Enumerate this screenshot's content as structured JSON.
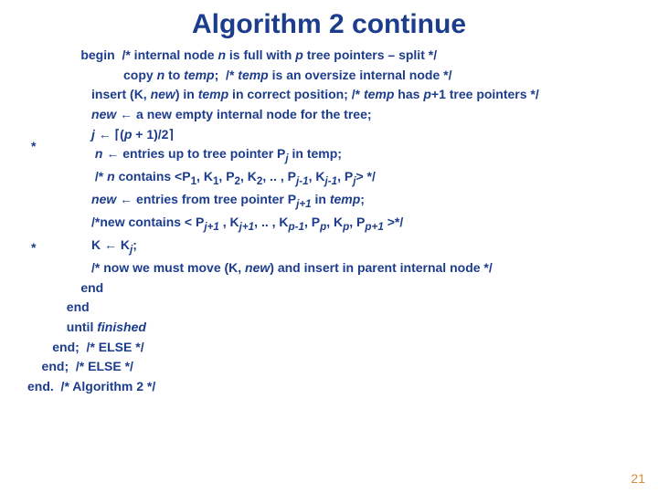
{
  "title": "Algorithm 2 continue",
  "slide_number": "21",
  "colors": {
    "text": "#1c3c8c",
    "slidenum": "#d88a3a",
    "background": "#ffffff"
  },
  "fonts": {
    "title_size": 30,
    "body_size": 14,
    "family": "Arial"
  },
  "stars": {
    "s1": "*",
    "s2": "*"
  },
  "lines": {
    "l1_a": "               begin  /* internal node ",
    "l1_b": "n",
    "l1_c": " is full with ",
    "l1_d": "p",
    "l1_e": " tree pointers – split */",
    "l2_a": "                           copy ",
    "l2_b": "n",
    "l2_c": " to ",
    "l2_d": "temp",
    "l2_e": ";  /* ",
    "l2_f": "temp",
    "l2_g": " is an oversize internal node */",
    "l3_a": "                  insert (K, ",
    "l3_b": "new",
    "l3_c": ") in ",
    "l3_d": "temp",
    "l3_e": " in correct position; /* ",
    "l3_f": "temp",
    "l3_g": " has ",
    "l3_h": "p",
    "l3_i": "+1 tree pointers */",
    "l4_a": "                  ",
    "l4_b": "new",
    "l4_c": " ← a new empty internal node for the tree;",
    "l5_a": "                  ",
    "l5_b": "j",
    "l5_c": " ← ⌈(",
    "l5_d": "p",
    "l5_e": " + 1)/2⌉",
    "l6_a": "                   ",
    "l6_b": "n",
    "l6_c": " ← entries up to tree pointer P",
    "l6_d": "j",
    "l6_e": " in temp;",
    "l7_a": "                   /* ",
    "l7_b": "n",
    "l7_c": " contains <P",
    "l7_d": "1",
    "l7_e": ", K",
    "l7_f": "1",
    "l7_g": ", P",
    "l7_h": "2",
    "l7_i": ", K",
    "l7_j": "2",
    "l7_k": ", .. , P",
    "l7_l": "j-1",
    "l7_m": ", K",
    "l7_n": "j-1",
    "l7_o": ", P",
    "l7_p": "j",
    "l7_q": "> */",
    "l8_a": "                  ",
    "l8_b": "new",
    "l8_c": " ← entries from tree pointer P",
    "l8_d": "j+1",
    "l8_e": " in ",
    "l8_f": "temp",
    "l8_g": ";",
    "l9_a": "                  /*new contains < P",
    "l9_b": "j+1",
    "l9_c": " , K",
    "l9_d": "j+1",
    "l9_e": ", .. , K",
    "l9_f": "p-1",
    "l9_g": ", P",
    "l9_h": "p",
    "l9_i": ", K",
    "l9_j": "p",
    "l9_k": ", P",
    "l9_l": "p+1",
    "l9_m": " >*/",
    "l10_a": "                  K ← K",
    "l10_b": "j",
    "l10_c": ";",
    "l11_a": "                  /* now we must move (K, ",
    "l11_b": "new",
    "l11_c": ") and insert in parent internal node */",
    "l12": "               end",
    "l13": "           end",
    "l14_a": "           until ",
    "l14_b": "finished",
    "l15": "       end;  /* ELSE */",
    "l16": "    end;  /* ELSE */",
    "l17": "end.  /* Algorithm 2 */"
  }
}
